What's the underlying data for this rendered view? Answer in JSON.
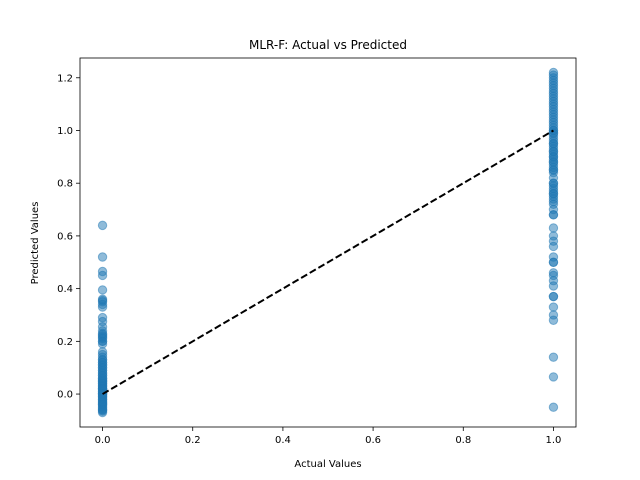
{
  "chart_data": {
    "type": "scatter",
    "title": "MLR-F: Actual vs Predicted",
    "xlabel": "Actual Values",
    "ylabel": "Predicted Values",
    "xlim": [
      -0.05,
      1.05
    ],
    "ylim": [
      -0.125,
      1.275
    ],
    "xticks": [
      "0.0",
      "0.2",
      "0.4",
      "0.6",
      "0.8",
      "1.0"
    ],
    "yticks": [
      "0.0",
      "0.2",
      "0.4",
      "0.6",
      "0.8",
      "1.0",
      "1.2"
    ],
    "grid": false,
    "marker_color": "#1f77b4",
    "reference_line": {
      "x": [
        0,
        1
      ],
      "y": [
        0,
        1
      ],
      "style": "dashed",
      "color": "#000000"
    },
    "series": [
      {
        "x": [
          0,
          0,
          0,
          0,
          0,
          0,
          0,
          0,
          0,
          0,
          0,
          0,
          0,
          0,
          0,
          0,
          0,
          0,
          0,
          0,
          0,
          0,
          0,
          0,
          0,
          0,
          0,
          0,
          0,
          0,
          0,
          0,
          0,
          0,
          0,
          0,
          0,
          0,
          0,
          0,
          0,
          0,
          0,
          0,
          0,
          0,
          0,
          0,
          0,
          0,
          0,
          0,
          0,
          0,
          0,
          0,
          0,
          0,
          0,
          0,
          0,
          0,
          0,
          0,
          0,
          0,
          0,
          0,
          0,
          0,
          0,
          0,
          0,
          0,
          0,
          0,
          0,
          0,
          0,
          0,
          1,
          1,
          1,
          1,
          1,
          1,
          1,
          1,
          1,
          1,
          1,
          1,
          1,
          1,
          1,
          1,
          1,
          1,
          1,
          1,
          1,
          1,
          1,
          1,
          1,
          1,
          1,
          1,
          1,
          1,
          1,
          1,
          1,
          1,
          1,
          1,
          1,
          1,
          1,
          1,
          1,
          1,
          1,
          1,
          1,
          1,
          1,
          1,
          1,
          1,
          1,
          1,
          1,
          1,
          1,
          1,
          1,
          1,
          1,
          1,
          1,
          1,
          1,
          1,
          1,
          1,
          1,
          1,
          1,
          1,
          1,
          1,
          1,
          1,
          1,
          1,
          1,
          1,
          1,
          1
        ],
        "y": [
          0.64,
          0.52,
          0.465,
          0.45,
          0.395,
          0.355,
          0.35,
          0.34,
          0.29,
          0.275,
          0.255,
          0.24,
          0.225,
          0.215,
          0.2,
          0.19,
          0.16,
          0.15,
          0.14,
          0.13,
          0.12,
          0.11,
          0.1,
          0.09,
          0.08,
          0.07,
          0.06,
          0.055,
          0.05,
          0.045,
          0.04,
          0.035,
          0.03,
          0.025,
          0.02,
          0.015,
          0.01,
          0.005,
          0.0,
          -0.005,
          -0.01,
          -0.015,
          -0.02,
          -0.025,
          -0.03,
          -0.035,
          -0.04,
          -0.045,
          -0.05,
          -0.055,
          -0.06,
          -0.065,
          -0.07,
          0.0,
          0.01,
          0.02,
          0.03,
          0.04,
          -0.01,
          -0.02,
          -0.03,
          0.05,
          0.06,
          0.07,
          0.08,
          0.09,
          0.1,
          0.11,
          0.12,
          0.13,
          0.2,
          0.21,
          0.22,
          0.23,
          0.33,
          0.36,
          0.02,
          -0.04,
          -0.06,
          0.0,
          1.22,
          1.21,
          1.2,
          1.19,
          1.18,
          1.17,
          1.16,
          1.15,
          1.14,
          1.12,
          1.1,
          1.08,
          1.06,
          1.05,
          1.04,
          1.03,
          1.02,
          1.01,
          1.0,
          0.99,
          0.98,
          0.97,
          0.96,
          0.95,
          0.94,
          0.93,
          0.92,
          0.91,
          0.9,
          0.89,
          0.88,
          0.87,
          0.86,
          0.85,
          0.84,
          0.82,
          0.8,
          0.78,
          0.77,
          0.76,
          0.75,
          0.74,
          0.73,
          0.72,
          0.7,
          0.68,
          0.63,
          0.6,
          0.58,
          0.56,
          0.52,
          0.5,
          0.46,
          0.43,
          0.41,
          0.37,
          0.33,
          0.3,
          0.28,
          0.14,
          0.065,
          -0.05,
          1.13,
          1.11,
          1.09,
          1.07,
          1.0,
          0.95,
          0.9,
          0.85,
          0.8,
          0.76,
          0.68,
          0.5,
          0.45,
          0.37,
          0.99,
          0.92,
          0.88,
          0.79
        ]
      }
    ]
  }
}
